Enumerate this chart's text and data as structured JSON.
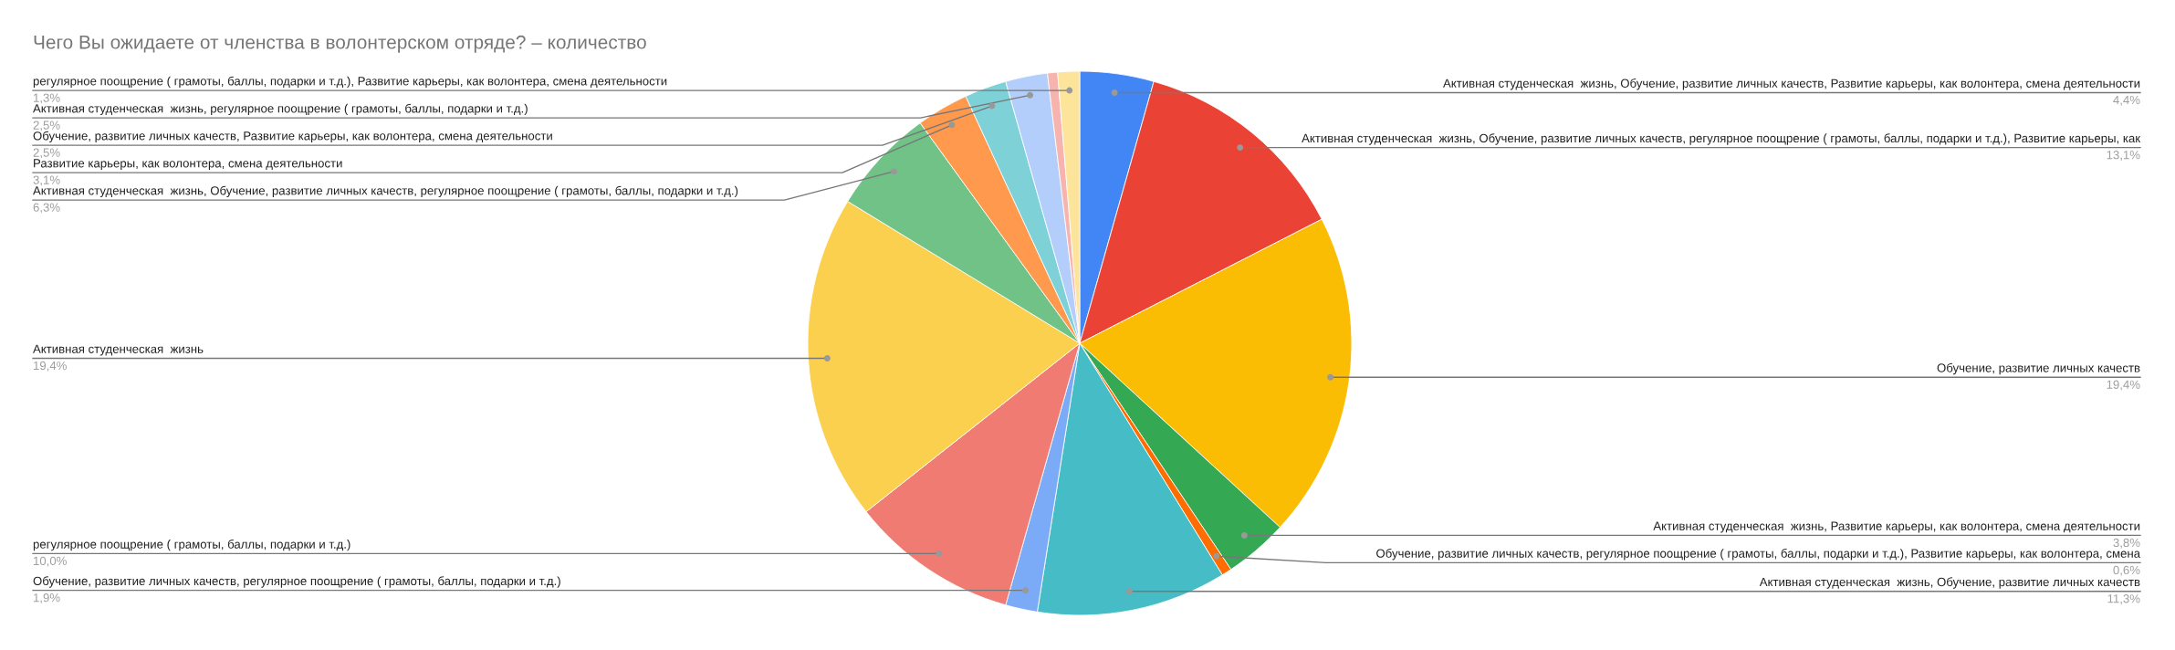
{
  "chart_data": {
    "type": "pie",
    "title": "Чего Вы ожидаете от членства в волонтерском отряде? – количество",
    "categories": [
      "Активная студенческая  жизнь, Обучение, развитие личных качеств, Развитие карьеры, как волонтера, смена деятельности",
      "Активная студенческая  жизнь, Обучение, развитие личных качеств, регулярное поощрение ( грамоты, баллы, подарки и т.д.), Развитие карьеры, как",
      "Обучение, развитие личных качеств",
      "Активная студенческая  жизнь, Развитие карьеры, как волонтера, смена деятельности",
      "Обучение, развитие личных качеств, регулярное поощрение ( грамоты, баллы, подарки и т.д.), Развитие карьеры, как волонтера, смена",
      "Активная студенческая  жизнь, Обучение, развитие личных качеств",
      "Обучение, развитие личных качеств, регулярное поощрение ( грамоты, баллы, подарки и т.д.)",
      "регулярное поощрение ( грамоты, баллы, подарки и т.д.)",
      "Активная студенческая  жизнь",
      "Активная студенческая  жизнь, Обучение, развитие личных качеств, регулярное поощрение ( грамоты, баллы, подарки и т.д.)",
      "Развитие карьеры, как волонтера, смена деятельности",
      "Обучение, развитие личных качеств, Развитие карьеры, как волонтера, смена деятельности",
      "Активная студенческая  жизнь, регулярное поощрение ( грамоты, баллы, подарки и т.д.)",
      null,
      "регулярное поощрение ( грамоты, баллы, подарки и т.д.), Развитие карьеры, как волонтера, смена деятельности"
    ],
    "values": [
      4.4,
      13.1,
      19.4,
      3.8,
      0.6,
      11.3,
      1.9,
      10.0,
      19.4,
      6.3,
      3.1,
      2.5,
      2.5,
      0.6,
      1.3
    ],
    "value_labels": [
      "4,4%",
      "13,1%",
      "19,4%",
      "3,8%",
      "0,6%",
      "11,3%",
      "1,9%",
      "10,0%",
      "19,4%",
      "6,3%",
      "3,1%",
      "2,5%",
      "2,5%",
      null,
      "1,3%"
    ],
    "colors": [
      "#4285f4",
      "#ea4335",
      "#fbbc04",
      "#34a853",
      "#ff6d01",
      "#46bdc6",
      "#7baaf7",
      "#f07b72",
      "#fcd04f",
      "#71c287",
      "#ff994d",
      "#7ed1d7",
      "#b3cefb",
      "#f7b4ae",
      "#fde49b"
    ]
  }
}
